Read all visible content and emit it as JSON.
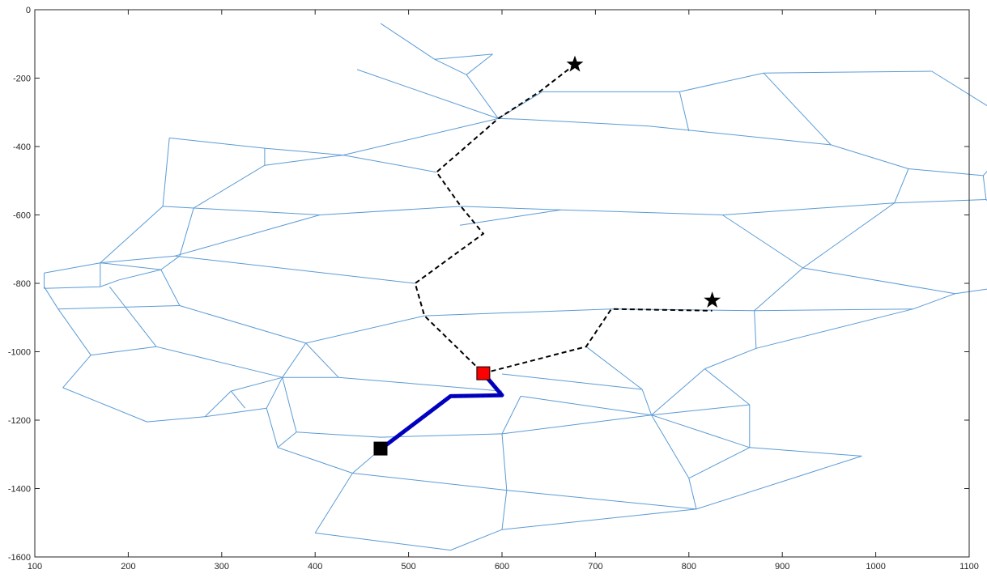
{
  "chart_data": {
    "type": "scatter",
    "title": "",
    "xlabel": "",
    "ylabel": "",
    "xlim": [
      100,
      1100
    ],
    "ylim": [
      -1600,
      0
    ],
    "grid": false,
    "box": true,
    "xticks": [
      100,
      200,
      300,
      400,
      500,
      600,
      700,
      800,
      900,
      1000,
      1100
    ],
    "yticks": [
      0,
      -200,
      -400,
      -600,
      -800,
      -1000,
      -1200,
      -1400,
      -1600
    ],
    "xtick_labels": [
      "100",
      "200",
      "300",
      "400",
      "500",
      "600",
      "700",
      "800",
      "900",
      "1000",
      "1100"
    ],
    "ytick_labels": [
      "0",
      "-200",
      "-400",
      "-600",
      "-800",
      "-1000",
      "-1200",
      "-1400",
      "-1600"
    ],
    "road_network": {
      "color": "#5b9bd5",
      "edges": [
        [
          [
            470,
            -40
          ],
          [
            528,
            -145
          ]
        ],
        [
          [
            528,
            -145
          ],
          [
            562,
            -190
          ]
        ],
        [
          [
            528,
            -145
          ],
          [
            590,
            -130
          ]
        ],
        [
          [
            590,
            -130
          ],
          [
            562,
            -190
          ]
        ],
        [
          [
            562,
            -190
          ],
          [
            596,
            -318
          ]
        ],
        [
          [
            445,
            -175
          ],
          [
            596,
            -318
          ]
        ],
        [
          [
            596,
            -318
          ],
          [
            430,
            -425
          ]
        ],
        [
          [
            430,
            -425
          ],
          [
            346,
            -455
          ]
        ],
        [
          [
            346,
            -455
          ],
          [
            346,
            -405
          ]
        ],
        [
          [
            346,
            -405
          ],
          [
            244,
            -375
          ]
        ],
        [
          [
            244,
            -375
          ],
          [
            237,
            -575
          ]
        ],
        [
          [
            430,
            -425
          ],
          [
            346,
            -405
          ]
        ],
        [
          [
            596,
            -318
          ],
          [
            620,
            -320
          ]
        ],
        [
          [
            620,
            -320
          ],
          [
            757,
            -340
          ]
        ],
        [
          [
            757,
            -340
          ],
          [
            952,
            -395
          ]
        ],
        [
          [
            952,
            -395
          ],
          [
            1035,
            -465
          ]
        ],
        [
          [
            1035,
            -465
          ],
          [
            1115,
            -485
          ]
        ],
        [
          [
            1115,
            -485
          ],
          [
            1160,
            -350
          ]
        ],
        [
          [
            1160,
            -350
          ],
          [
            1060,
            -180
          ]
        ],
        [
          [
            1060,
            -180
          ],
          [
            880,
            -185
          ]
        ],
        [
          [
            880,
            -185
          ],
          [
            790,
            -240
          ]
        ],
        [
          [
            790,
            -240
          ],
          [
            643,
            -240
          ]
        ],
        [
          [
            643,
            -240
          ],
          [
            596,
            -318
          ]
        ],
        [
          [
            790,
            -240
          ],
          [
            800,
            -355
          ]
        ],
        [
          [
            880,
            -185
          ],
          [
            952,
            -395
          ]
        ],
        [
          [
            430,
            -425
          ],
          [
            530,
            -475
          ]
        ],
        [
          [
            346,
            -455
          ],
          [
            270,
            -580
          ]
        ],
        [
          [
            270,
            -580
          ],
          [
            255,
            -720
          ]
        ],
        [
          [
            237,
            -575
          ],
          [
            405,
            -600
          ]
        ],
        [
          [
            405,
            -600
          ],
          [
            556,
            -575
          ]
        ],
        [
          [
            556,
            -575
          ],
          [
            663,
            -585
          ]
        ],
        [
          [
            663,
            -585
          ],
          [
            836,
            -600
          ]
        ],
        [
          [
            836,
            -600
          ],
          [
            1020,
            -565
          ]
        ],
        [
          [
            1020,
            -565
          ],
          [
            1118,
            -555
          ]
        ],
        [
          [
            1118,
            -555
          ],
          [
            1115,
            -485
          ]
        ],
        [
          [
            1020,
            -565
          ],
          [
            1035,
            -465
          ]
        ],
        [
          [
            1118,
            -555
          ],
          [
            1165,
            -655
          ]
        ],
        [
          [
            1165,
            -655
          ],
          [
            1150,
            -805
          ]
        ],
        [
          [
            1150,
            -805
          ],
          [
            1085,
            -830
          ]
        ],
        [
          [
            1085,
            -830
          ],
          [
            922,
            -755
          ]
        ],
        [
          [
            922,
            -755
          ],
          [
            836,
            -600
          ]
        ],
        [
          [
            922,
            -755
          ],
          [
            1020,
            -565
          ]
        ],
        [
          [
            237,
            -575
          ],
          [
            170,
            -740
          ]
        ],
        [
          [
            170,
            -740
          ],
          [
            110,
            -770
          ]
        ],
        [
          [
            110,
            -770
          ],
          [
            110,
            -815
          ]
        ],
        [
          [
            110,
            -815
          ],
          [
            170,
            -810
          ]
        ],
        [
          [
            170,
            -810
          ],
          [
            170,
            -740
          ]
        ],
        [
          [
            170,
            -740
          ],
          [
            250,
            -720
          ]
        ],
        [
          [
            250,
            -720
          ],
          [
            405,
            -600
          ]
        ],
        [
          [
            250,
            -720
          ],
          [
            507,
            -800
          ]
        ],
        [
          [
            255,
            -720
          ],
          [
            235,
            -760
          ]
        ],
        [
          [
            235,
            -760
          ],
          [
            170,
            -740
          ]
        ],
        [
          [
            235,
            -760
          ],
          [
            190,
            -790
          ]
        ],
        [
          [
            190,
            -790
          ],
          [
            170,
            -810
          ]
        ],
        [
          [
            110,
            -815
          ],
          [
            110,
            -810
          ]
        ],
        [
          [
            110,
            -810
          ],
          [
            125,
            -875
          ]
        ],
        [
          [
            125,
            -875
          ],
          [
            255,
            -865
          ]
        ],
        [
          [
            255,
            -865
          ],
          [
            235,
            -760
          ]
        ],
        [
          [
            255,
            -865
          ],
          [
            390,
            -975
          ]
        ],
        [
          [
            390,
            -975
          ],
          [
            517,
            -895
          ]
        ],
        [
          [
            555,
            -630
          ],
          [
            663,
            -585
          ]
        ],
        [
          [
            517,
            -895
          ],
          [
            717,
            -875
          ]
        ],
        [
          [
            717,
            -875
          ],
          [
            870,
            -880
          ]
        ],
        [
          [
            870,
            -880
          ],
          [
            1040,
            -875
          ]
        ],
        [
          [
            1040,
            -875
          ],
          [
            872,
            -990
          ]
        ],
        [
          [
            872,
            -990
          ],
          [
            870,
            -880
          ]
        ],
        [
          [
            1085,
            -830
          ],
          [
            1040,
            -875
          ]
        ],
        [
          [
            870,
            -880
          ],
          [
            922,
            -755
          ]
        ],
        [
          [
            125,
            -875
          ],
          [
            160,
            -1010
          ]
        ],
        [
          [
            160,
            -1010
          ],
          [
            230,
            -985
          ]
        ],
        [
          [
            230,
            -985
          ],
          [
            365,
            -1075
          ]
        ],
        [
          [
            365,
            -1075
          ],
          [
            390,
            -975
          ]
        ],
        [
          [
            390,
            -975
          ],
          [
            425,
            -1075
          ]
        ],
        [
          [
            425,
            -1075
          ],
          [
            365,
            -1075
          ]
        ],
        [
          [
            160,
            -1010
          ],
          [
            130,
            -1105
          ]
        ],
        [
          [
            130,
            -1105
          ],
          [
            220,
            -1205
          ]
        ],
        [
          [
            220,
            -1205
          ],
          [
            282,
            -1190
          ]
        ],
        [
          [
            282,
            -1190
          ],
          [
            348,
            -1165
          ]
        ],
        [
          [
            348,
            -1165
          ],
          [
            365,
            -1075
          ]
        ],
        [
          [
            282,
            -1190
          ],
          [
            310,
            -1115
          ]
        ],
        [
          [
            310,
            -1115
          ],
          [
            365,
            -1075
          ]
        ],
        [
          [
            310,
            -1115
          ],
          [
            325,
            -1165
          ]
        ],
        [
          [
            230,
            -985
          ],
          [
            180,
            -810
          ]
        ],
        [
          [
            365,
            -1075
          ],
          [
            380,
            -1235
          ]
        ],
        [
          [
            380,
            -1235
          ],
          [
            470,
            -1250
          ]
        ],
        [
          [
            348,
            -1165
          ],
          [
            360,
            -1280
          ]
        ],
        [
          [
            360,
            -1280
          ],
          [
            380,
            -1235
          ]
        ],
        [
          [
            360,
            -1280
          ],
          [
            440,
            -1355
          ]
        ],
        [
          [
            440,
            -1355
          ],
          [
            470,
            -1285
          ]
        ],
        [
          [
            440,
            -1355
          ],
          [
            605,
            -1405
          ]
        ],
        [
          [
            440,
            -1355
          ],
          [
            400,
            -1530
          ]
        ],
        [
          [
            400,
            -1530
          ],
          [
            545,
            -1580
          ]
        ],
        [
          [
            545,
            -1580
          ],
          [
            600,
            -1520
          ]
        ],
        [
          [
            600,
            -1520
          ],
          [
            605,
            -1405
          ]
        ],
        [
          [
            600,
            -1520
          ],
          [
            808,
            -1460
          ]
        ],
        [
          [
            605,
            -1405
          ],
          [
            808,
            -1460
          ]
        ],
        [
          [
            808,
            -1460
          ],
          [
            985,
            -1305
          ]
        ],
        [
          [
            985,
            -1305
          ],
          [
            865,
            -1280
          ]
        ],
        [
          [
            865,
            -1280
          ],
          [
            800,
            -1370
          ]
        ],
        [
          [
            800,
            -1370
          ],
          [
            808,
            -1460
          ]
        ],
        [
          [
            800,
            -1370
          ],
          [
            760,
            -1185
          ]
        ],
        [
          [
            760,
            -1185
          ],
          [
            865,
            -1280
          ]
        ],
        [
          [
            760,
            -1185
          ],
          [
            865,
            -1155
          ]
        ],
        [
          [
            865,
            -1155
          ],
          [
            865,
            -1280
          ]
        ],
        [
          [
            760,
            -1185
          ],
          [
            817,
            -1050
          ]
        ],
        [
          [
            817,
            -1050
          ],
          [
            865,
            -1155
          ]
        ],
        [
          [
            817,
            -1050
          ],
          [
            872,
            -990
          ]
        ],
        [
          [
            605,
            -1405
          ],
          [
            600,
            -1240
          ]
        ],
        [
          [
            600,
            -1240
          ],
          [
            470,
            -1250
          ]
        ],
        [
          [
            600,
            -1240
          ],
          [
            760,
            -1185
          ]
        ],
        [
          [
            620,
            -1130
          ],
          [
            760,
            -1185
          ]
        ],
        [
          [
            620,
            -1130
          ],
          [
            600,
            -1240
          ]
        ],
        [
          [
            600,
            -1065
          ],
          [
            750,
            -1110
          ]
        ],
        [
          [
            750,
            -1110
          ],
          [
            760,
            -1185
          ]
        ],
        [
          [
            690,
            -985
          ],
          [
            750,
            -1110
          ]
        ],
        [
          [
            425,
            -1075
          ],
          [
            600,
            -1115
          ]
        ]
      ]
    },
    "routes": [
      {
        "style": "dashed",
        "color": "#000000",
        "points": [
          [
            678,
            -160
          ],
          [
            640,
            -240
          ],
          [
            596,
            -318
          ],
          [
            530,
            -475
          ],
          [
            556,
            -575
          ],
          [
            580,
            -655
          ],
          [
            507,
            -800
          ],
          [
            517,
            -895
          ],
          [
            580,
            -1063
          ]
        ]
      },
      {
        "style": "dashed",
        "color": "#000000",
        "points": [
          [
            580,
            -1063
          ],
          [
            690,
            -985
          ],
          [
            717,
            -875
          ],
          [
            825,
            -880
          ]
        ]
      },
      {
        "style": "solid-thick",
        "color": "#0000cc",
        "points": [
          [
            470,
            -1285
          ],
          [
            545,
            -1130
          ],
          [
            600,
            -1127
          ],
          [
            580,
            -1063
          ]
        ]
      }
    ],
    "markers": [
      {
        "shape": "star",
        "color": "#000000",
        "x": 678,
        "y": -160
      },
      {
        "shape": "star",
        "color": "#000000",
        "x": 825,
        "y": -850
      },
      {
        "shape": "square",
        "color": "#ff0000",
        "x": 580,
        "y": -1063
      },
      {
        "shape": "square",
        "color": "#000000",
        "x": 470,
        "y": -1283
      }
    ]
  }
}
